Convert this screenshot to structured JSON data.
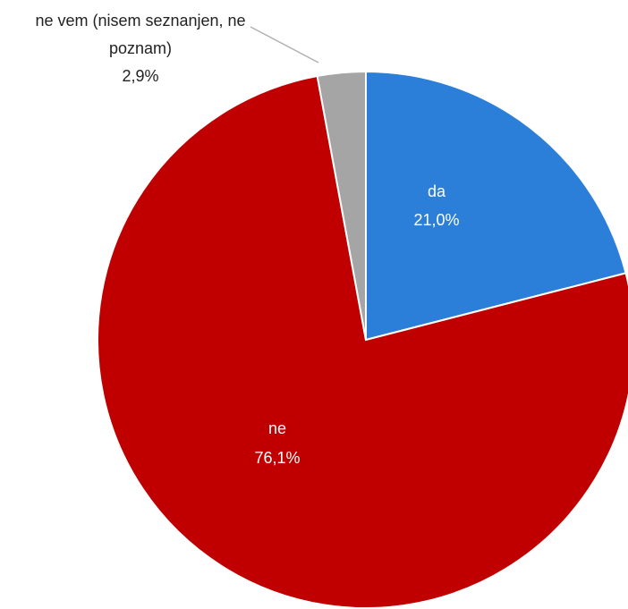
{
  "chart_data": {
    "type": "pie",
    "categories": [
      "da",
      "ne",
      "ne vem (nisem seznanjen, ne poznam)"
    ],
    "values": [
      21.0,
      76.1,
      2.9
    ],
    "value_labels": [
      "21,0%",
      "76,1%",
      "2,9%"
    ],
    "colors": [
      "#2b7fd9",
      "#c00000",
      "#a5a5a5"
    ]
  }
}
